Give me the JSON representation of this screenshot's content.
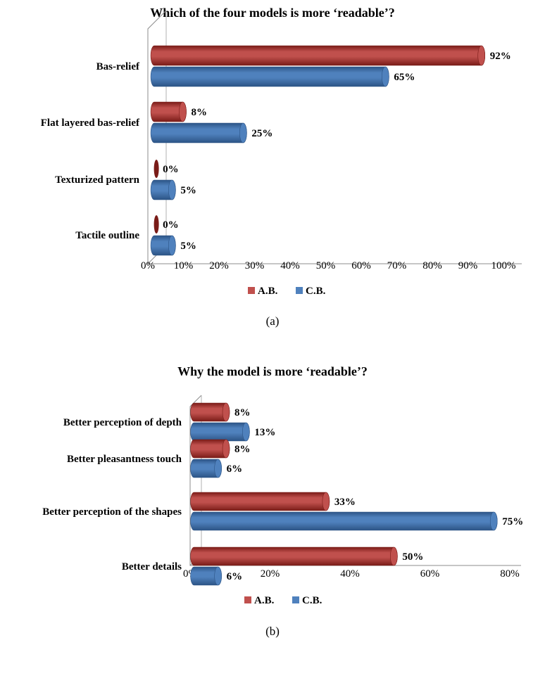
{
  "colors": {
    "ab": "#c0504d",
    "cb": "#4f81bd"
  },
  "chart_data": [
    {
      "type": "bar",
      "orientation": "horizontal",
      "title": "Which of the four models is more ‘readable’?",
      "caption": "(a)",
      "categories": [
        "Bas-relief",
        "Flat layered bas-relief",
        "Texturized pattern",
        "Tactile outline"
      ],
      "series": [
        {
          "name": "A.B.",
          "values": [
            92,
            8,
            0,
            0
          ],
          "labels": [
            "92%",
            "8%",
            "0%",
            "0%"
          ]
        },
        {
          "name": "C.B.",
          "values": [
            65,
            25,
            5,
            5
          ],
          "labels": [
            "65%",
            "25%",
            "5%",
            "5%"
          ]
        }
      ],
      "xlim": [
        0,
        100
      ],
      "ticks": [
        "0%",
        "10%",
        "20%",
        "30%",
        "40%",
        "50%",
        "60%",
        "70%",
        "80%",
        "90%",
        "100%"
      ],
      "legend": [
        "A.B.",
        "C.B."
      ],
      "legend_position": "bottom",
      "grid": false
    },
    {
      "type": "bar",
      "orientation": "horizontal",
      "title": "Why the model is more ‘readable’?",
      "caption": "(b)",
      "categories": [
        "Better perception of depth",
        "Better pleasantness touch",
        "Better perception of the shapes",
        "Better details"
      ],
      "series": [
        {
          "name": "A.B.",
          "values": [
            8,
            8,
            33,
            50
          ],
          "labels": [
            "8%",
            "8%",
            "33%",
            "50%"
          ]
        },
        {
          "name": "C.B.",
          "values": [
            13,
            6,
            75,
            6
          ],
          "labels": [
            "13%",
            "6%",
            "75%",
            "6%"
          ]
        }
      ],
      "xlim": [
        0,
        80
      ],
      "ticks": [
        "0%",
        "20%",
        "40%",
        "60%",
        "80%"
      ],
      "legend": [
        "A.B.",
        "C.B."
      ],
      "legend_position": "bottom",
      "grid": false
    }
  ]
}
